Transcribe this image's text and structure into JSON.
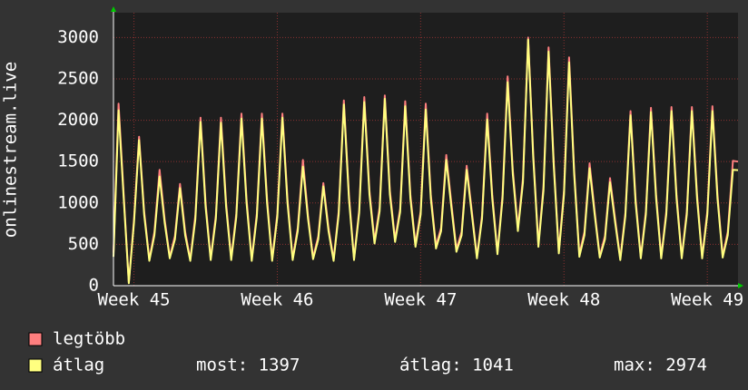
{
  "chart_data": {
    "type": "line",
    "y_label": "onlinestream.live",
    "categories": [
      null,
      null,
      null,
      null,
      "Week 45",
      null,
      null,
      null,
      null,
      null,
      null,
      null,
      null,
      null,
      null,
      null,
      null,
      null,
      null,
      null,
      null,
      null,
      null,
      null,
      null,
      null,
      null,
      null,
      null,
      null,
      null,
      null,
      "Week 46",
      null,
      null,
      null,
      null,
      null,
      null,
      null,
      null,
      null,
      null,
      null,
      null,
      null,
      null,
      null,
      null,
      null,
      null,
      null,
      null,
      null,
      null,
      null,
      null,
      null,
      null,
      null,
      "Week 47",
      null,
      null,
      null,
      null,
      null,
      null,
      null,
      null,
      null,
      null,
      null,
      null,
      null,
      null,
      null,
      null,
      null,
      null,
      null,
      null,
      null,
      null,
      null,
      null,
      null,
      null,
      null,
      "Week 48",
      null,
      null,
      null,
      null,
      null,
      null,
      null,
      null,
      null,
      null,
      null,
      null,
      null,
      null,
      null,
      null,
      null,
      null,
      null,
      null,
      null,
      null,
      null,
      null,
      null,
      null,
      null,
      "Week 49",
      null,
      null,
      null,
      null,
      null,
      null
    ],
    "series": [
      {
        "name": "legtöbb",
        "color": "#ff7f7f",
        "values": [
          400,
          2200,
          1100,
          40,
          800,
          1800,
          900,
          320,
          650,
          1400,
          800,
          350,
          600,
          1230,
          650,
          320,
          850,
          2030,
          1000,
          330,
          850,
          2030,
          1000,
          330,
          870,
          2080,
          1050,
          320,
          870,
          2080,
          1050,
          320,
          870,
          2080,
          1050,
          330,
          700,
          1520,
          850,
          340,
          600,
          1240,
          700,
          320,
          900,
          2240,
          1100,
          330,
          920,
          2280,
          1150,
          540,
          950,
          2300,
          1150,
          560,
          930,
          2230,
          1100,
          500,
          900,
          2200,
          1100,
          480,
          700,
          1580,
          1000,
          440,
          650,
          1450,
          900,
          350,
          850,
          2080,
          1100,
          400,
          1100,
          2530,
          1400,
          700,
          1300,
          3000,
          1600,
          500,
          1200,
          2880,
          1500,
          420,
          1150,
          2760,
          1400,
          380,
          650,
          1480,
          900,
          360,
          600,
          1300,
          800,
          330,
          880,
          2110,
          1050,
          350,
          900,
          2150,
          1100,
          350,
          900,
          2160,
          1100,
          350,
          900,
          2160,
          1100,
          350,
          900,
          2170,
          1100,
          360,
          650,
          1510,
          1500
        ]
      },
      {
        "name": "átlag",
        "color": "#ffff80",
        "values": [
          350,
          2120,
          1050,
          30,
          760,
          1760,
          860,
          300,
          610,
          1320,
          760,
          330,
          560,
          1180,
          610,
          300,
          800,
          1980,
          950,
          310,
          810,
          1970,
          950,
          310,
          830,
          2020,
          1000,
          300,
          830,
          2020,
          1000,
          300,
          830,
          2030,
          1000,
          310,
          660,
          1440,
          810,
          320,
          560,
          1200,
          660,
          300,
          860,
          2190,
          1050,
          310,
          880,
          2220,
          1100,
          510,
          900,
          2260,
          1100,
          530,
          890,
          2170,
          1050,
          470,
          860,
          2130,
          1050,
          450,
          660,
          1520,
          950,
          410,
          610,
          1400,
          860,
          330,
          810,
          2010,
          1050,
          380,
          1050,
          2460,
          1350,
          660,
          1250,
          2974,
          1550,
          470,
          1150,
          2830,
          1450,
          390,
          1100,
          2700,
          1350,
          350,
          610,
          1420,
          860,
          340,
          560,
          1250,
          760,
          310,
          840,
          2060,
          1000,
          330,
          860,
          2100,
          1050,
          330,
          860,
          2110,
          1050,
          330,
          860,
          2110,
          1050,
          330,
          860,
          2110,
          1050,
          340,
          610,
          1400,
          1397
        ]
      }
    ],
    "annotations": [
      "most: 1397",
      "átlag: 1041",
      "max: 2974"
    ],
    "ylim": [
      0,
      3300
    ],
    "yticks": [
      0,
      500,
      1000,
      1500,
      2000,
      2500,
      3000
    ],
    "grid": true
  }
}
